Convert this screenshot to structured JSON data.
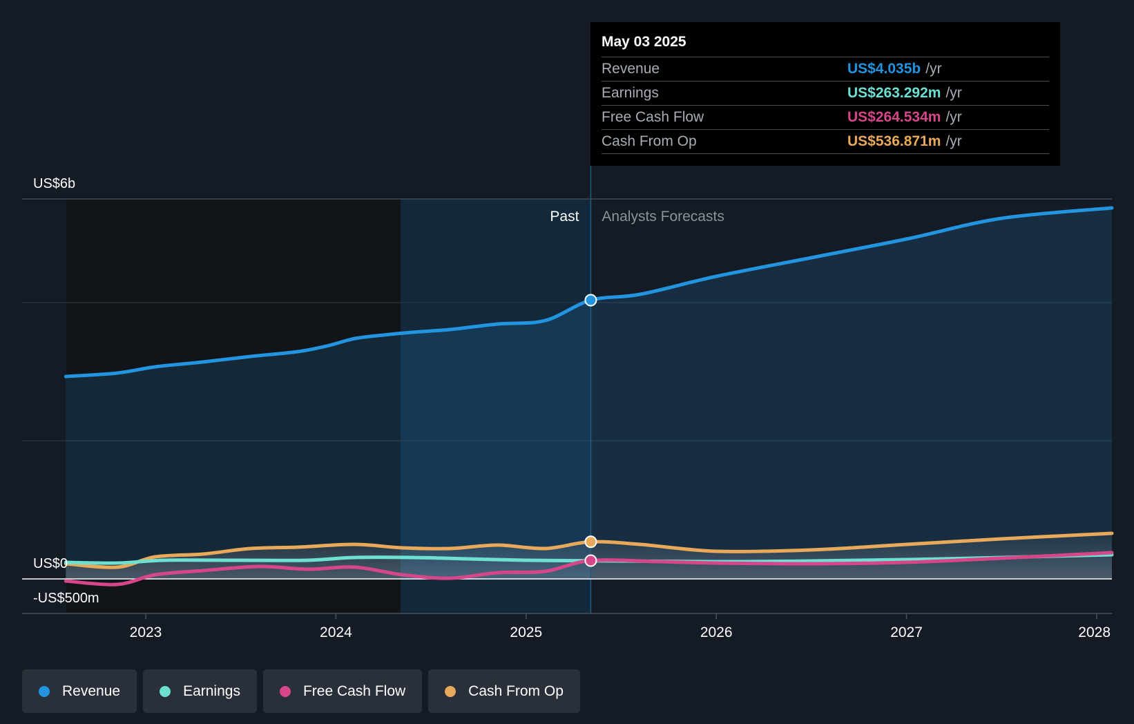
{
  "chart_data": {
    "type": "line",
    "x_unit": "year",
    "y_unit": "US$ billions",
    "ylim": [
      -0.5,
      5.5
    ],
    "y_axis_labels": [
      {
        "value": 5.5,
        "label": "US$6b"
      },
      {
        "value": 0,
        "label": "US$0"
      },
      {
        "value": -0.5,
        "label": "-US$500m"
      }
    ],
    "x_ticks": [
      {
        "value": 2023,
        "label": "2023"
      },
      {
        "value": 2024,
        "label": "2024"
      },
      {
        "value": 2025,
        "label": "2025"
      },
      {
        "value": 2026,
        "label": "2026"
      },
      {
        "value": 2027,
        "label": "2027"
      },
      {
        "value": 2028,
        "label": "2028"
      }
    ],
    "xlim": [
      2022.35,
      2028.08
    ],
    "past_label": "Past",
    "forecast_label": "Analysts Forecasts",
    "divider_x": 2025.34,
    "highlight_start_x": 2024.34,
    "series": [
      {
        "name": "Revenue",
        "color": "#2394df",
        "fill": true,
        "points": [
          [
            2022.58,
            2.93
          ],
          [
            2022.85,
            2.98
          ],
          [
            2023.05,
            3.07
          ],
          [
            2023.3,
            3.14
          ],
          [
            2023.55,
            3.22
          ],
          [
            2023.8,
            3.29
          ],
          [
            2023.95,
            3.37
          ],
          [
            2024.1,
            3.48
          ],
          [
            2024.25,
            3.53
          ],
          [
            2024.4,
            3.57
          ],
          [
            2024.6,
            3.61
          ],
          [
            2024.85,
            3.69
          ],
          [
            2025.1,
            3.74
          ],
          [
            2025.34,
            4.035
          ],
          [
            2025.6,
            4.12
          ],
          [
            2026.0,
            4.38
          ],
          [
            2026.5,
            4.65
          ],
          [
            2027.0,
            4.92
          ],
          [
            2027.5,
            5.22
          ],
          [
            2028.08,
            5.37
          ]
        ]
      },
      {
        "name": "Cash From Op",
        "color": "#e8a95a",
        "fill": false,
        "points": [
          [
            2022.58,
            0.22
          ],
          [
            2022.85,
            0.17
          ],
          [
            2023.05,
            0.32
          ],
          [
            2023.3,
            0.36
          ],
          [
            2023.55,
            0.44
          ],
          [
            2023.8,
            0.46
          ],
          [
            2024.1,
            0.5
          ],
          [
            2024.35,
            0.45
          ],
          [
            2024.6,
            0.44
          ],
          [
            2024.85,
            0.49
          ],
          [
            2025.1,
            0.44
          ],
          [
            2025.34,
            0.537
          ],
          [
            2025.6,
            0.5
          ],
          [
            2026.0,
            0.4
          ],
          [
            2026.5,
            0.42
          ],
          [
            2027.0,
            0.5
          ],
          [
            2027.5,
            0.58
          ],
          [
            2028.08,
            0.66
          ]
        ]
      },
      {
        "name": "Earnings",
        "color": "#6ee0d2",
        "fill": false,
        "points": [
          [
            2022.58,
            0.24
          ],
          [
            2022.85,
            0.23
          ],
          [
            2023.1,
            0.27
          ],
          [
            2023.5,
            0.27
          ],
          [
            2023.85,
            0.27
          ],
          [
            2024.1,
            0.31
          ],
          [
            2024.4,
            0.31
          ],
          [
            2024.7,
            0.29
          ],
          [
            2025.0,
            0.27
          ],
          [
            2025.34,
            0.263
          ],
          [
            2026.0,
            0.25
          ],
          [
            2026.5,
            0.26
          ],
          [
            2027.0,
            0.28
          ],
          [
            2027.5,
            0.31
          ],
          [
            2028.08,
            0.35
          ]
        ]
      },
      {
        "name": "Free Cash Flow",
        "color": "#d6478a",
        "fill": false,
        "points": [
          [
            2022.58,
            -0.03
          ],
          [
            2022.85,
            -0.08
          ],
          [
            2023.05,
            0.06
          ],
          [
            2023.3,
            0.12
          ],
          [
            2023.6,
            0.18
          ],
          [
            2023.85,
            0.14
          ],
          [
            2024.1,
            0.17
          ],
          [
            2024.35,
            0.06
          ],
          [
            2024.6,
            0.01
          ],
          [
            2024.85,
            0.09
          ],
          [
            2025.1,
            0.11
          ],
          [
            2025.34,
            0.265
          ],
          [
            2025.7,
            0.25
          ],
          [
            2026.0,
            0.23
          ],
          [
            2026.5,
            0.22
          ],
          [
            2027.0,
            0.24
          ],
          [
            2027.5,
            0.3
          ],
          [
            2028.08,
            0.38
          ]
        ]
      }
    ]
  },
  "tooltip": {
    "date": "May 03 2025",
    "rows": [
      {
        "name": "Revenue",
        "value": "US$4.035b",
        "unit": "/yr",
        "color": "#2394df"
      },
      {
        "name": "Earnings",
        "value": "US$263.292m",
        "unit": "/yr",
        "color": "#6ee0d2"
      },
      {
        "name": "Free Cash Flow",
        "value": "US$264.534m",
        "unit": "/yr",
        "color": "#d6478a"
      },
      {
        "name": "Cash From Op",
        "value": "US$536.871m",
        "unit": "/yr",
        "color": "#e8a95a"
      }
    ]
  },
  "legend": [
    {
      "label": "Revenue",
      "color": "#2394df"
    },
    {
      "label": "Earnings",
      "color": "#6ee0d2"
    },
    {
      "label": "Free Cash Flow",
      "color": "#d6478a"
    },
    {
      "label": "Cash From Op",
      "color": "#e8a95a"
    }
  ]
}
